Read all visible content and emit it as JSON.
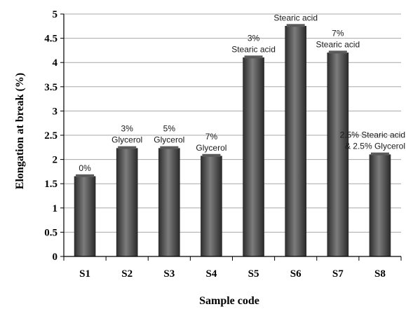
{
  "chart_data": {
    "type": "bar",
    "title": "",
    "xlabel": "Sample code",
    "ylabel": "Elongation at break (%)",
    "categories": [
      "S1",
      "S2",
      "S3",
      "S4",
      "S5",
      "S6",
      "S7",
      "S8"
    ],
    "values": [
      1.65,
      2.23,
      2.23,
      2.07,
      4.1,
      4.75,
      4.2,
      2.1
    ],
    "ylim": [
      0,
      5
    ],
    "yticks": [
      "0",
      "0.5",
      "1",
      "1.5",
      "2",
      "2.5",
      "3",
      "3.5",
      "4",
      "4.5",
      "5"
    ],
    "grid": true,
    "legend": "none",
    "bar_color": "#4a4a4a",
    "grid_color": "#a8a8a8",
    "annotations": [
      [
        "0%"
      ],
      [
        "3%",
        "Glycerol"
      ],
      [
        "5%",
        "Glycerol"
      ],
      [
        "7%",
        "Glycerol"
      ],
      [
        "3%",
        "Stearic acid"
      ],
      [
        "Stearic acid"
      ],
      [
        "7%",
        "Stearic acid"
      ],
      [
        "2.5% Stearic acid",
        "& 2.5% Glycerol"
      ]
    ]
  }
}
